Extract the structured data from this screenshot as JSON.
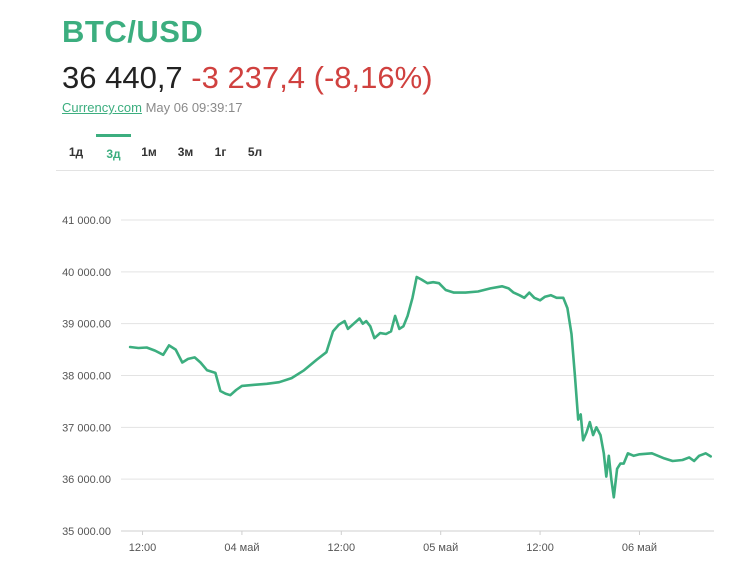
{
  "header": {
    "pair": "BTC/USD",
    "price": "36 440,7",
    "change": "-3 237,4 (-8,16%)",
    "source_link": "Currency.com",
    "timestamp": "May 06 09:39:17"
  },
  "tabs": [
    {
      "label": "1д",
      "active": false
    },
    {
      "label": "3д",
      "active": true
    },
    {
      "label": "1м",
      "active": false
    },
    {
      "label": "3м",
      "active": false
    },
    {
      "label": "1г",
      "active": false
    },
    {
      "label": "5л",
      "active": false
    }
  ],
  "colors": {
    "accent": "#3cae7f",
    "negative": "#d0413f",
    "line": "#3cae7f",
    "grid": "#e3e3e3"
  },
  "chart_data": {
    "type": "line",
    "title": "",
    "xlabel": "",
    "ylabel": "",
    "ylim": [
      35000,
      41000
    ],
    "y_ticks": [
      35000,
      36000,
      37000,
      38000,
      39000,
      40000,
      41000
    ],
    "y_tick_labels": [
      "35 000.00",
      "36 000.00",
      "37 000.00",
      "38 000.00",
      "39 000.00",
      "40 000.00",
      "41 000.00"
    ],
    "x_unit": "hours since 03 May 00:00",
    "xlim": [
      9.4,
      81
    ],
    "x_ticks": [
      12,
      24,
      36,
      48,
      60,
      72
    ],
    "x_tick_labels": [
      "12:00",
      "04 май",
      "12:00",
      "05 май",
      "12:00",
      "06 май"
    ],
    "grid": true,
    "series": [
      {
        "values": [
          [
            10.5,
            38550
          ],
          [
            11.5,
            38530
          ],
          [
            12.5,
            38540
          ],
          [
            13.5,
            38480
          ],
          [
            14.5,
            38400
          ],
          [
            15.2,
            38580
          ],
          [
            16,
            38500
          ],
          [
            16.8,
            38250
          ],
          [
            17.5,
            38320
          ],
          [
            18.3,
            38350
          ],
          [
            19,
            38250
          ],
          [
            19.8,
            38100
          ],
          [
            20.8,
            38050
          ],
          [
            21.4,
            37700
          ],
          [
            22,
            37650
          ],
          [
            22.6,
            37620
          ],
          [
            23.3,
            37720
          ],
          [
            24,
            37800
          ],
          [
            25.5,
            37820
          ],
          [
            27,
            37840
          ],
          [
            28.5,
            37870
          ],
          [
            30,
            37950
          ],
          [
            31.5,
            38100
          ],
          [
            33,
            38300
          ],
          [
            34.2,
            38450
          ],
          [
            35,
            38850
          ],
          [
            35.7,
            38980
          ],
          [
            36.4,
            39050
          ],
          [
            36.8,
            38900
          ],
          [
            37.5,
            39000
          ],
          [
            38.2,
            39100
          ],
          [
            38.6,
            39000
          ],
          [
            39,
            39050
          ],
          [
            39.5,
            38950
          ],
          [
            40,
            38720
          ],
          [
            40.7,
            38820
          ],
          [
            41.4,
            38800
          ],
          [
            42,
            38850
          ],
          [
            42.5,
            39150
          ],
          [
            43,
            38900
          ],
          [
            43.5,
            38950
          ],
          [
            44,
            39150
          ],
          [
            44.6,
            39500
          ],
          [
            45.1,
            39900
          ],
          [
            45.7,
            39850
          ],
          [
            46.4,
            39780
          ],
          [
            47.1,
            39800
          ],
          [
            47.8,
            39780
          ],
          [
            48.6,
            39650
          ],
          [
            49.6,
            39600
          ],
          [
            51,
            39600
          ],
          [
            52.5,
            39620
          ],
          [
            54,
            39680
          ],
          [
            55.4,
            39720
          ],
          [
            56.2,
            39680
          ],
          [
            56.8,
            39600
          ],
          [
            57.5,
            39550
          ],
          [
            58.1,
            39500
          ],
          [
            58.7,
            39600
          ],
          [
            59.3,
            39500
          ],
          [
            60,
            39450
          ],
          [
            60.6,
            39520
          ],
          [
            61.3,
            39550
          ],
          [
            62,
            39500
          ],
          [
            62.8,
            39500
          ],
          [
            63.3,
            39300
          ],
          [
            63.8,
            38800
          ],
          [
            64.2,
            38000
          ],
          [
            64.6,
            37150
          ],
          [
            64.9,
            37250
          ],
          [
            65.2,
            36750
          ],
          [
            65.6,
            36900
          ],
          [
            66,
            37100
          ],
          [
            66.4,
            36850
          ],
          [
            66.8,
            37000
          ],
          [
            67.3,
            36850
          ],
          [
            67.7,
            36500
          ],
          [
            68,
            36050
          ],
          [
            68.3,
            36450
          ],
          [
            68.6,
            36000
          ],
          [
            68.9,
            35650
          ],
          [
            69.3,
            36200
          ],
          [
            69.7,
            36300
          ],
          [
            70.1,
            36300
          ],
          [
            70.6,
            36500
          ],
          [
            71.3,
            36450
          ],
          [
            72,
            36480
          ],
          [
            73.5,
            36500
          ],
          [
            75,
            36400
          ],
          [
            76,
            36350
          ],
          [
            77.2,
            36370
          ],
          [
            78,
            36420
          ],
          [
            78.6,
            36350
          ],
          [
            79.2,
            36450
          ],
          [
            80,
            36500
          ],
          [
            80.6,
            36440
          ]
        ]
      }
    ]
  }
}
